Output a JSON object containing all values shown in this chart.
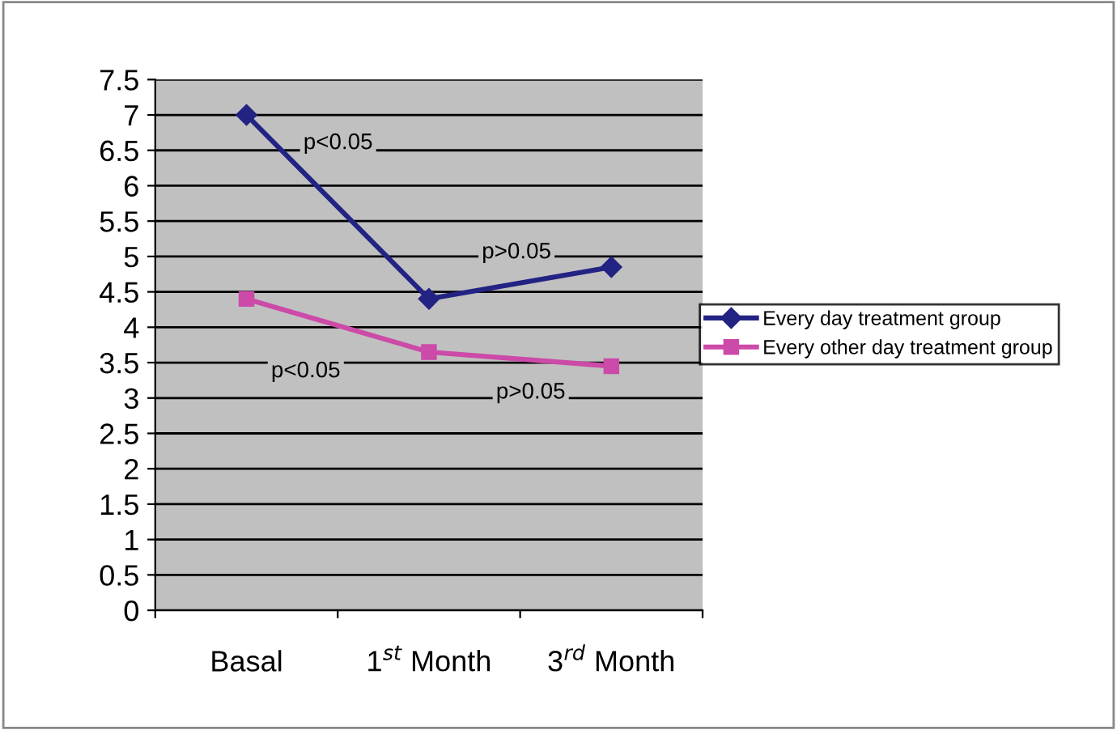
{
  "chart_data": {
    "type": "line",
    "categories": [
      "Basal",
      "1$^{st}$ Month",
      "3$^{rd}$ Month"
    ],
    "series": [
      {
        "name": "Every day treatment group",
        "color": "#232384",
        "marker": "diamond",
        "values": [
          7.0,
          4.4,
          4.85
        ]
      },
      {
        "name": "Every other day treatment group",
        "color": "#cc4aa8",
        "marker": "square",
        "values": [
          4.4,
          3.65,
          3.45
        ]
      }
    ],
    "ylim": [
      0,
      7.5
    ],
    "yticks": [
      0,
      0.5,
      1,
      1.5,
      2,
      2.5,
      3,
      3.5,
      4,
      4.5,
      5,
      5.5,
      6,
      6.5,
      7,
      7.5
    ],
    "grid": "y",
    "legend": "right",
    "annotations": [
      "p<0.05",
      "p>0.05",
      "p<0.05",
      "p>0.05"
    ]
  }
}
